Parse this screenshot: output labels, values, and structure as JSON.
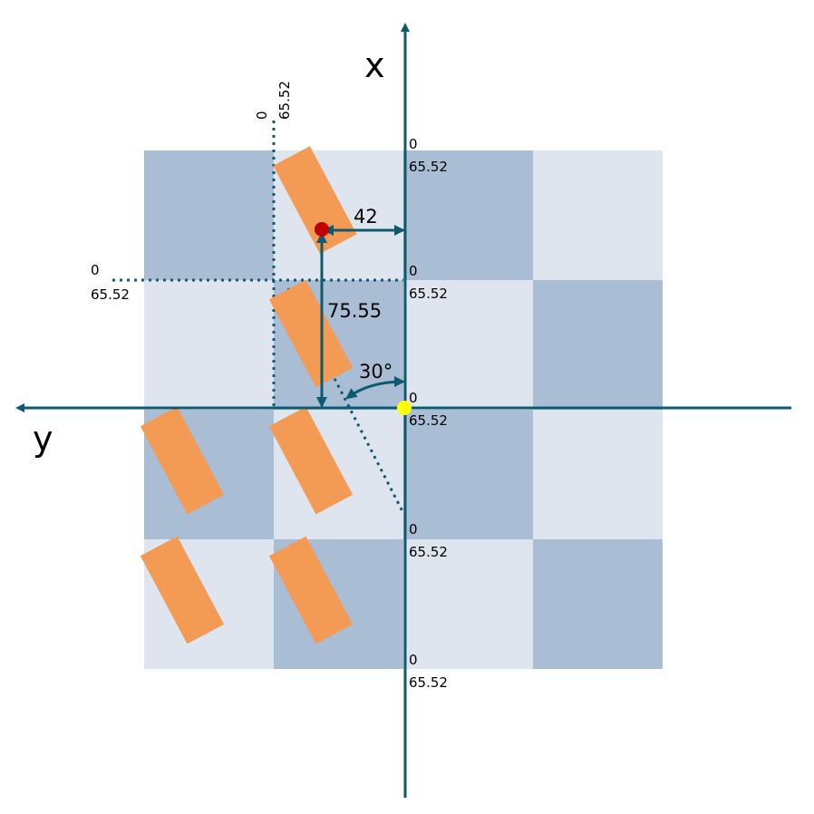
{
  "axes": {
    "x_label": "x",
    "y_label": "y"
  },
  "dimensions": {
    "dx": "42",
    "dy": "75.55",
    "angle": "30°"
  },
  "ticks": {
    "x_axis": [
      {
        "a": "0",
        "b": "65.52"
      },
      {
        "a": "0",
        "b": "65.52"
      },
      {
        "a": "0",
        "b": "65.52"
      },
      {
        "a": "0",
        "b": "65.52"
      },
      {
        "a": "0",
        "b": "65.52"
      }
    ],
    "dotted_vertical": {
      "a": "0",
      "b": "65.52"
    },
    "dotted_horizontal": {
      "a": "0",
      "b": "65.52"
    }
  },
  "colors": {
    "dark_tile": "#a9bdd4",
    "light_tile": "#dfe5ef",
    "axis": "#0e5a6e",
    "block": "#f39a55",
    "marker_red": "#c00000",
    "marker_yellow": "#ffff00"
  },
  "grid": {
    "pattern": [
      [
        "dark",
        "light",
        "dark",
        "light"
      ],
      [
        "light",
        "dark",
        "light",
        "dark"
      ],
      [
        "dark",
        "light",
        "dark",
        "light"
      ],
      [
        "light",
        "dark",
        "light",
        "dark"
      ]
    ]
  }
}
